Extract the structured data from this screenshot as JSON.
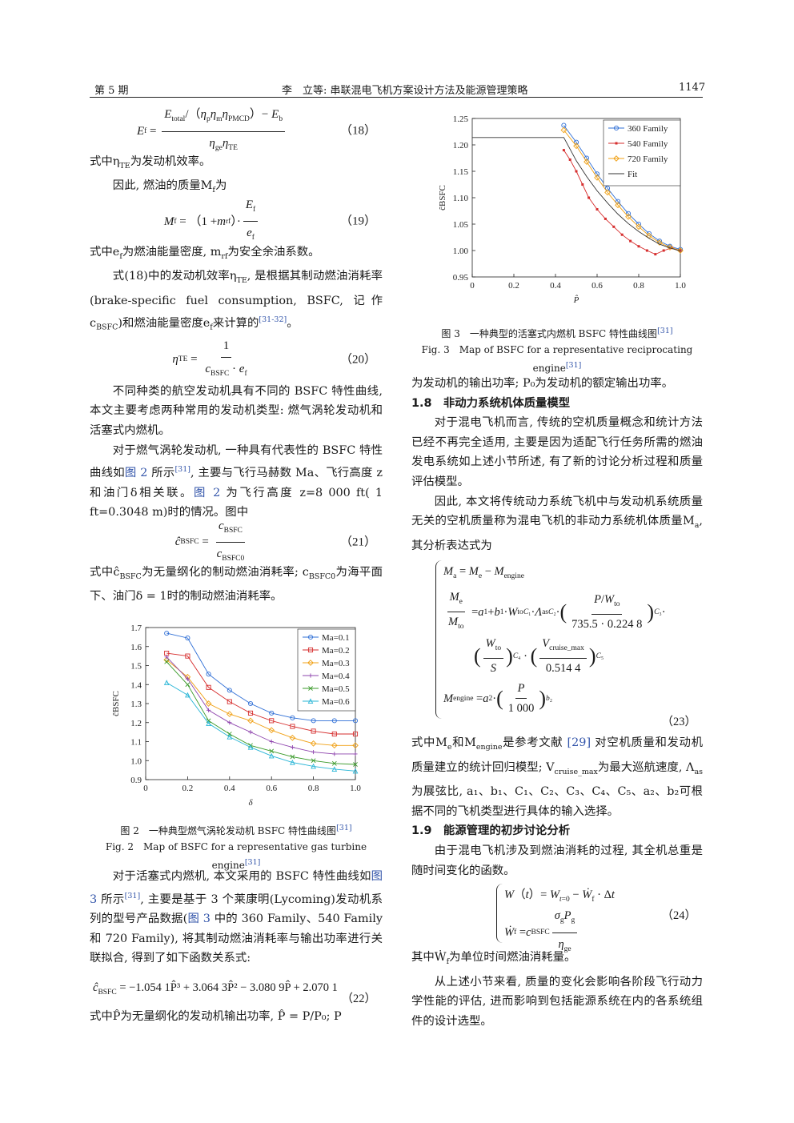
{
  "header": {
    "left": "第 5 期",
    "center": "李　立等: 串联混电飞机方案设计方法及能源管理策略",
    "right": "1147"
  },
  "left": {
    "eq18_num": "（18）",
    "p_te": "式中η",
    "p_te_sub": "TE",
    "p_te_tail": "为发动机效率。",
    "p_mass": "因此, 燃油的质量M",
    "p_mass_sub": "f",
    "p_mass_tail": "为",
    "eq19_num": "（19）",
    "p_ef_a": "式中e",
    "p_ef_sub": "f",
    "p_ef_b": "为燃油能量密度, m",
    "p_ef_sub2": "rf",
    "p_ef_c": "为安全余油系数。",
    "p_eq18_a": "式(18)中的发动机效率η",
    "p_eq18_sub": "TE",
    "p_eq18_b": ", 是根据其制动燃油消耗率(brake-specific fuel consumption, BSFC, 记作c",
    "p_eq18_sub2": "BSFC",
    "p_eq18_c": ")和燃油能量密度e",
    "p_eq18_sub3": "f",
    "p_eq18_d": "来计算的",
    "p_eq18_ref": "[31-32]",
    "p_eq18_e": "。",
    "eq20_num": "（20）",
    "p_types": "不同种类的航空发动机具有不同的 BSFC 特性曲线, 本文主要考虑两种常用的发动机类型: 燃气涡轮发动机和活塞式内燃机。",
    "p_gt_a": "对于燃气涡轮发动机, 一种具有代表性的 BSFC 特性曲线如",
    "p_gt_ref1": "图 2",
    "p_gt_b": " 所示",
    "p_gt_cite": "[31]",
    "p_gt_c": ", 主要与飞行马赫数 Ma、飞行高度 z 和油门δ相关联。",
    "p_gt_ref2": "图 2",
    "p_gt_d": " 为飞行高度 z=8 000 ft( 1 ft=0.3048 m)时的情况。图中",
    "eq21_num": "（21）",
    "p_chat_a": "式中ĉ",
    "p_chat_sub": "BSFC",
    "p_chat_b": "为无量纲化的制动燃油消耗率; c",
    "p_chat_sub2": "BSFC0",
    "p_chat_c": "为海平面下、油门δ = 1时的制动燃油消耗率。",
    "fig2_cap_cn": "图 2　一种典型燃气涡轮发动机 BSFC 特性曲线图",
    "fig2_cap_cn_ref": "[31]",
    "fig2_cap_en": "Fig. 2　Map of BSFC for a representative gas turbine engine",
    "fig2_cap_en_ref": "[31]",
    "p_piston_a": "对于活塞式内燃机, 本文采用的 BSFC 特性曲线如",
    "p_piston_ref1": "图 3",
    "p_piston_b": " 所示",
    "p_piston_cite": "[31]",
    "p_piston_c": ", 主要是基于 3 个莱康明(Lycoming)发动机系列的型号产品数据(",
    "p_piston_ref2": "图 3",
    "p_piston_d": " 中的 360 Family、540 Family 和 720 Family), 将其制动燃油消耗率与输出功率进行关联拟合, 得到了如下函数关系式:",
    "eq22_body": "ĉ",
    "eq22_sub": "BSFC",
    "eq22_rhs": " = −1.054 1P̂³ + 3.064 3P̂² − 3.080 9P̂ + 2.070 1",
    "eq22_num": "（22）",
    "p_phat": "式中P̂为无量纲化的发动机输出功率, P̂ = P/P₀; P"
  },
  "right": {
    "fig3_cap_cn": "图 3　一种典型的活塞式内燃机 BSFC 特性曲线图",
    "fig3_cap_cn_ref": "[31]",
    "fig3_cap_en": "Fig. 3　Map of BSFC for a representative reciprocating engine",
    "fig3_cap_en_ref": "[31]",
    "p_p0": "为发动机的输出功率; P₀为发动机的额定输出功率。",
    "sec18": "1.8　非动力系统机体质量模型",
    "p_hybrid": "对于混电飞机而言, 传统的空机质量概念和统计方法已经不再完全适用, 主要是因为适配飞行任务所需的燃油发电系统如上述小节所述, 有了新的讨论分析过程和质量评估模型。",
    "p_ma_a": "因此, 本文将传统动力系统飞机中与发动机系统质量无关的空机质量称为混电飞机的非动力系统机体质量M",
    "p_ma_sub": "a",
    "p_ma_b": ", 其分析表达式为",
    "eq23_num": "（23）",
    "p_me_a": "式中M",
    "p_me_sub": "e",
    "p_me_b": "和M",
    "p_me_sub2": "engine",
    "p_me_c": "是参考文献 ",
    "p_me_ref": "[29]",
    "p_me_d": " 对空机质量和发动机质量建立的统计回归模型; V",
    "p_me_sub3": "cruise_max",
    "p_me_e": "为最大巡航速度, Λ",
    "p_me_sub4": "as",
    "p_me_f": "为展弦比, a₁、b₁、C₁、C₂、C₃、C₄、C₅、a₂、b₂可根据不同的飞机类型进行具体的输入选择。",
    "sec19": "1.9　能源管理的初步讨论分析",
    "p_energy": "由于混电飞机涉及到燃油消耗的过程, 其全机总重是随时间变化的函数。",
    "eq24_num": "（24）",
    "p_wf": "其中Ẇ",
    "p_wf_sub": "f",
    "p_wf_tail": "为单位时间燃油消耗量。",
    "p_last": "从上述小节来看, 质量的变化会影响各阶段飞行动力学性能的评估, 进而影响到包括能源系统在内的各系统组件的设计选型。"
  },
  "chart_data": [
    {
      "type": "line",
      "xlabel": "δ",
      "ylabel": "ĉBSFC",
      "xlim": [
        0,
        1.0
      ],
      "ylim": [
        0.9,
        1.7
      ],
      "x_ticks": [
        "0",
        "0.2",
        "0.4",
        "0.6",
        "0.8",
        "1.0"
      ],
      "y_ticks": [
        "0.9",
        "1.0",
        "1.1",
        "1.2",
        "1.3",
        "1.4",
        "1.5",
        "1.6",
        "1.7"
      ],
      "legend_position": "top-right",
      "x": [
        0.1,
        0.2,
        0.3,
        0.4,
        0.5,
        0.6,
        0.7,
        0.8,
        0.9,
        1.0
      ],
      "series": [
        {
          "name": "Ma=0.1",
          "color": "#2f6fd6",
          "marker": "circle",
          "values": [
            1.67,
            1.645,
            1.455,
            1.37,
            1.3,
            1.25,
            1.225,
            1.21,
            1.21,
            1.21
          ]
        },
        {
          "name": "Ma=0.2",
          "color": "#d62e2e",
          "marker": "square",
          "values": [
            1.565,
            1.55,
            1.385,
            1.31,
            1.25,
            1.21,
            1.18,
            1.155,
            1.14,
            1.14
          ]
        },
        {
          "name": "Ma=0.3",
          "color": "#f0a014",
          "marker": "diamond",
          "values": [
            1.53,
            1.44,
            1.3,
            1.245,
            1.21,
            1.16,
            1.12,
            1.09,
            1.08,
            1.08
          ]
        },
        {
          "name": "Ma=0.4",
          "color": "#8e44ad",
          "marker": "plus",
          "values": [
            1.545,
            1.43,
            1.265,
            1.2,
            1.15,
            1.1,
            1.07,
            1.045,
            1.035,
            1.035
          ]
        },
        {
          "name": "Ma=0.5",
          "color": "#3a9a2a",
          "marker": "x",
          "values": [
            1.52,
            1.4,
            1.21,
            1.14,
            1.08,
            1.05,
            1.02,
            1.0,
            0.985,
            0.98
          ]
        },
        {
          "name": "Ma=0.6",
          "color": "#27b5d6",
          "marker": "triangle",
          "values": [
            1.41,
            1.345,
            1.195,
            1.125,
            1.07,
            1.025,
            0.99,
            0.97,
            0.955,
            0.945
          ]
        }
      ]
    },
    {
      "type": "line",
      "xlabel": "P̂",
      "ylabel": "ĉBSFC",
      "xlim": [
        0,
        1.0
      ],
      "ylim": [
        0.95,
        1.25
      ],
      "x_ticks": [
        "0",
        "0.2",
        "0.4",
        "0.6",
        "0.8",
        "1.0"
      ],
      "y_ticks": [
        "0.95",
        "1.00",
        "1.05",
        "1.10",
        "1.15",
        "1.20",
        "1.25"
      ],
      "legend_position": "top-right",
      "series": [
        {
          "name": "360 Family",
          "color": "#2f6fd6",
          "marker": "circle",
          "x": [
            0.44,
            0.5,
            0.55,
            0.6,
            0.65,
            0.7,
            0.75,
            0.8,
            0.85,
            0.9,
            0.95,
            1.0
          ],
          "values": [
            1.237,
            1.205,
            1.175,
            1.145,
            1.118,
            1.093,
            1.07,
            1.05,
            1.032,
            1.018,
            1.008,
            1.002
          ]
        },
        {
          "name": "540 Family",
          "color": "#d62e2e",
          "marker": "dot",
          "x": [
            0.44,
            0.47,
            0.5,
            0.53,
            0.56,
            0.6,
            0.64,
            0.68,
            0.72,
            0.76,
            0.8,
            0.84,
            0.88,
            0.92,
            0.96,
            1.0
          ],
          "values": [
            1.19,
            1.172,
            1.15,
            1.125,
            1.1,
            1.078,
            1.06,
            1.045,
            1.03,
            1.018,
            1.008,
            1.0,
            0.993,
            1.0,
            1.005,
            1.0
          ]
        },
        {
          "name": "720 Family",
          "color": "#f0a014",
          "marker": "diamond",
          "x": [
            0.44,
            0.5,
            0.55,
            0.6,
            0.65,
            0.7,
            0.75,
            0.8,
            0.85,
            0.9,
            0.95,
            1.0
          ],
          "values": [
            1.228,
            1.198,
            1.168,
            1.138,
            1.11,
            1.086,
            1.064,
            1.045,
            1.028,
            1.015,
            1.006,
            1.0
          ]
        },
        {
          "name": "Fit",
          "color": "#333333",
          "marker": "none",
          "x": [
            0.0,
            0.1,
            0.2,
            0.3,
            0.44,
            0.5,
            0.55,
            0.6,
            0.65,
            0.7,
            0.75,
            0.8,
            0.85,
            0.9,
            0.95,
            1.0
          ],
          "values": [
            1.214,
            1.214,
            1.214,
            1.214,
            1.214,
            1.17,
            1.14,
            1.113,
            1.09,
            1.069,
            1.051,
            1.036,
            1.023,
            1.012,
            1.005,
            0.999
          ]
        }
      ]
    }
  ]
}
